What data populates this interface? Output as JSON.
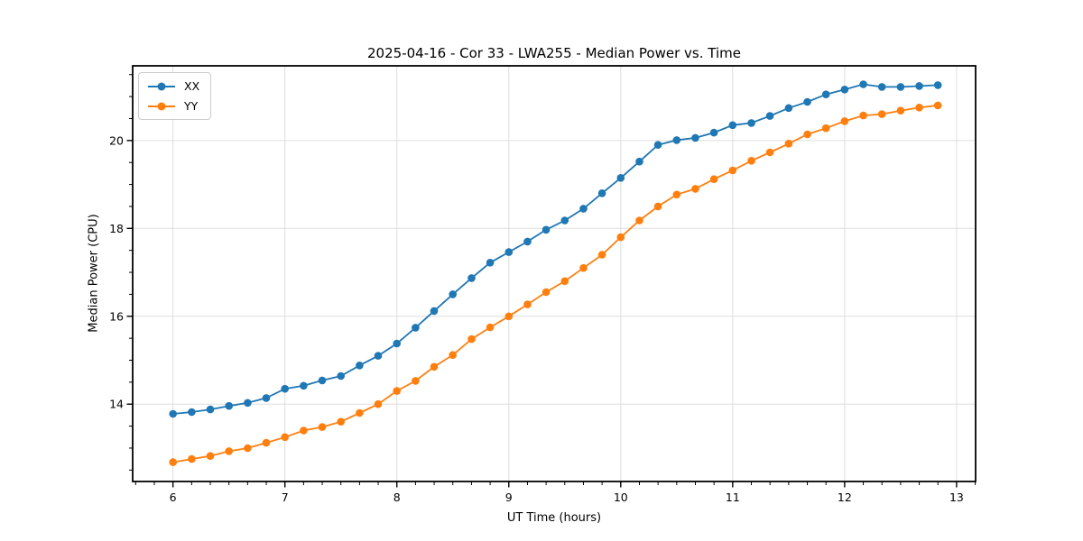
{
  "chart_data": {
    "type": "line",
    "title": "2025-04-16 - Cor 33 - LWA255 - Median Power vs. Time",
    "xlabel": "UT Time (hours)",
    "ylabel": "Median Power (CPU)",
    "xlim": [
      5.64,
      13.17
    ],
    "ylim": [
      12.24,
      21.7
    ],
    "xticks": [
      6,
      7,
      8,
      9,
      10,
      11,
      12,
      13
    ],
    "yticks": [
      14,
      16,
      18,
      20
    ],
    "x_minor_step": 0.166667,
    "y_minor_step": 0.5,
    "grid": true,
    "grid_color": "#dedede",
    "legend_position": "upper left",
    "x": [
      6.0,
      6.167,
      6.333,
      6.5,
      6.667,
      6.833,
      7.0,
      7.167,
      7.333,
      7.5,
      7.667,
      7.833,
      8.0,
      8.167,
      8.333,
      8.5,
      8.667,
      8.833,
      9.0,
      9.167,
      9.333,
      9.5,
      9.667,
      9.833,
      10.0,
      10.167,
      10.333,
      10.5,
      10.667,
      10.833,
      11.0,
      11.167,
      11.333,
      11.5,
      11.667,
      11.833,
      12.0,
      12.167,
      12.333,
      12.5,
      12.667,
      12.833
    ],
    "series": [
      {
        "name": "XX",
        "color": "#1f77b4",
        "values": [
          13.78,
          13.82,
          13.88,
          13.96,
          14.03,
          14.14,
          14.35,
          14.42,
          14.54,
          14.64,
          14.88,
          15.1,
          15.38,
          15.74,
          16.12,
          16.5,
          16.87,
          17.22,
          17.46,
          17.7,
          17.97,
          18.18,
          18.45,
          18.8,
          19.15,
          19.52,
          19.9,
          20.01,
          20.06,
          20.18,
          20.35,
          20.4,
          20.56,
          20.74,
          20.88,
          21.05,
          21.16,
          21.28,
          21.22,
          21.22,
          21.24,
          21.26
        ]
      },
      {
        "name": "YY",
        "color": "#ff7f0e",
        "values": [
          12.68,
          12.75,
          12.82,
          12.93,
          13.0,
          13.12,
          13.25,
          13.4,
          13.48,
          13.6,
          13.8,
          14.0,
          14.3,
          14.53,
          14.85,
          15.12,
          15.48,
          15.75,
          16.0,
          16.27,
          16.55,
          16.8,
          17.1,
          17.4,
          17.8,
          18.18,
          18.5,
          18.77,
          18.9,
          19.12,
          19.32,
          19.54,
          19.73,
          19.93,
          20.14,
          20.28,
          20.44,
          20.57,
          20.6,
          20.68,
          20.75,
          20.8
        ]
      }
    ]
  }
}
